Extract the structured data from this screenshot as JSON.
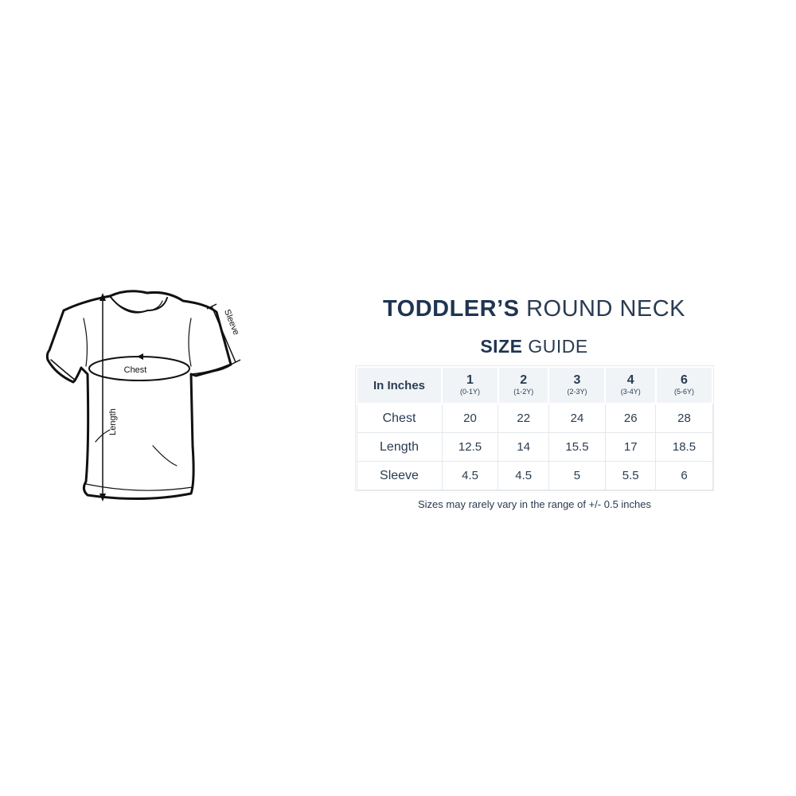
{
  "diagram": {
    "labels": {
      "chest": "Chest",
      "length": "Length",
      "sleeve": "Sleeve"
    }
  },
  "title": {
    "bold": "TODDLER’S",
    "light": "ROUND NECK"
  },
  "subtitle": {
    "bold": "SIZE",
    "light": "GUIDE"
  },
  "table": {
    "corner": "In Inches",
    "sizes": [
      {
        "size": "1",
        "age": "(0-1Y)"
      },
      {
        "size": "2",
        "age": "(1-2Y)"
      },
      {
        "size": "3",
        "age": "(2-3Y)"
      },
      {
        "size": "4",
        "age": "(3-4Y)"
      },
      {
        "size": "6",
        "age": "(5-6Y)"
      }
    ],
    "rows": [
      {
        "label": "Chest",
        "values": [
          "20",
          "22",
          "24",
          "26",
          "28"
        ]
      },
      {
        "label": "Length",
        "values": [
          "12.5",
          "14",
          "15.5",
          "17",
          "18.5"
        ]
      },
      {
        "label": "Sleeve",
        "values": [
          "4.5",
          "4.5",
          "5",
          "5.5",
          "6"
        ]
      }
    ]
  },
  "note": "Sizes may rarely vary in the range of +/- 0.5 inches"
}
